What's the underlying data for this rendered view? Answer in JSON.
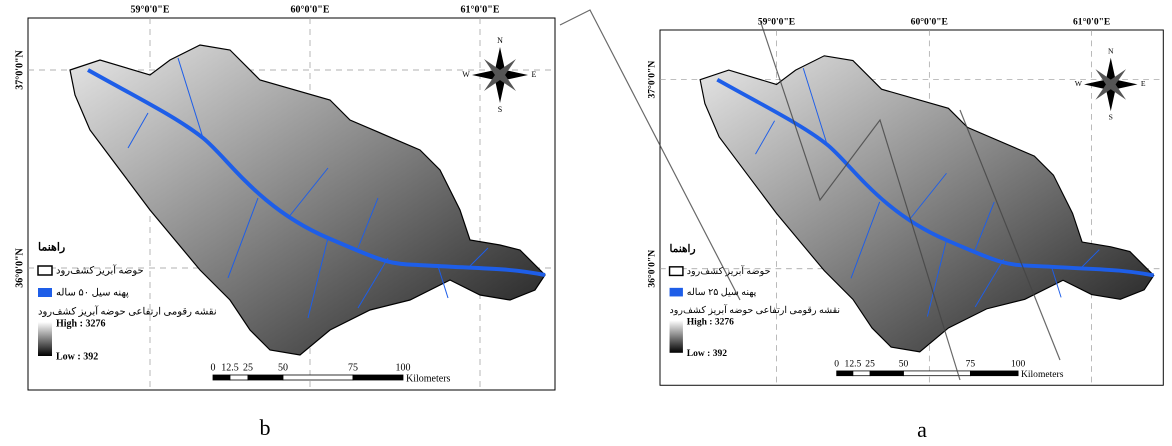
{
  "panels": [
    {
      "label": "b",
      "longitudes": [
        "59°0'0\"E",
        "60°0'0\"E",
        "61°0'0\"E"
      ],
      "latitudes": [
        "37°0'0\"N",
        "36°0'0\"N"
      ],
      "compass": {
        "n": "N",
        "s": "S",
        "w": "W",
        "e": "E"
      },
      "legend": {
        "title": "راهنما",
        "basin": "حوضه آبریز کشف‌رود",
        "flood": "پهنه سیل ۵۰ ساله",
        "dem_title": "نقشه رقومی ارتفاعی حوضه آبریز کشف‌رود",
        "high": "High : 3276",
        "low": "Low : 392"
      },
      "scale": {
        "ticks": [
          "0",
          "12.5",
          "25",
          "50",
          "75",
          "100"
        ],
        "unit": "Kilometers"
      }
    },
    {
      "label": "a",
      "longitudes": [
        "59°0'0\"E",
        "60°0'0\"E",
        "61°0'0\"E"
      ],
      "latitudes": [
        "37°0'0\"N",
        "36°0'0\"N"
      ],
      "compass": {
        "n": "N",
        "s": "S",
        "w": "W",
        "e": "E"
      },
      "legend": {
        "title": "راهنما",
        "basin": "حوضه آبریز کشف‌رود",
        "flood": "پهنه سیل ۲۵ ساله",
        "dem_title": "نقشه رقومی ارتفاعی حوضه آبریز کشف‌رود",
        "high": "High : 3276",
        "low": "Low : 392"
      },
      "scale": {
        "ticks": [
          "0",
          "12.5",
          "25",
          "50",
          "75",
          "100"
        ],
        "unit": "Kilometers"
      }
    }
  ]
}
